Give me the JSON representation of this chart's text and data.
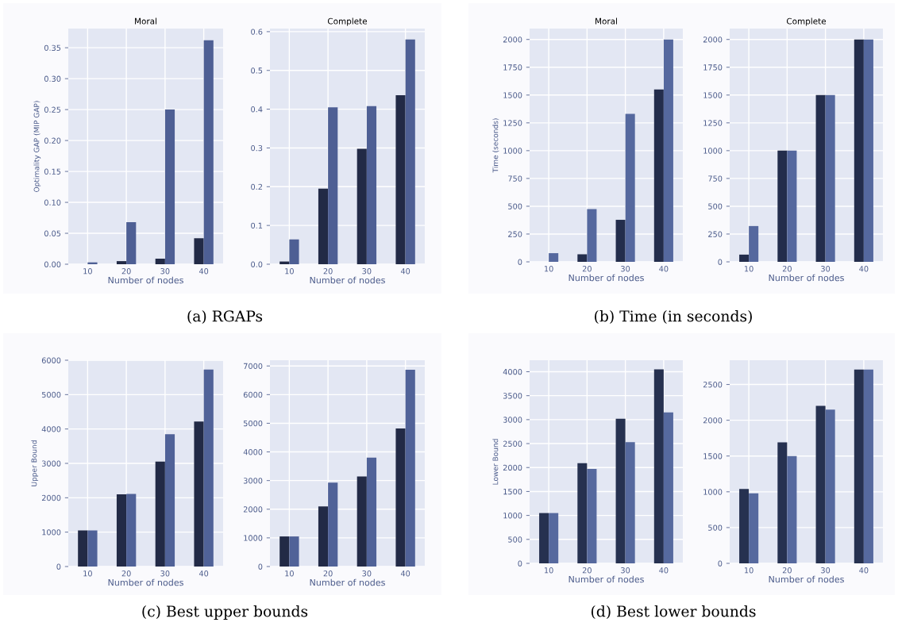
{
  "chart_data": [
    {
      "type": "bar",
      "title": "Moral",
      "ylabel": "Optimality GAP (MIP GAP)",
      "xlabel": "Number of nodes",
      "categories": [
        "10",
        "20",
        "30",
        "40"
      ],
      "grid": true,
      "ylim": [
        0,
        0.381
      ],
      "yticks": [
        {
          "value": 0,
          "label": "0.00"
        },
        {
          "value": 0.05,
          "label": "0.05"
        },
        {
          "value": 0.1,
          "label": "0.10"
        },
        {
          "value": 0.15,
          "label": "0.15"
        },
        {
          "value": 0.2,
          "label": "0.20"
        },
        {
          "value": 0.25,
          "label": "0.25"
        },
        {
          "value": 0.3,
          "label": "0.30"
        },
        {
          "value": 0.35,
          "label": "0.35"
        }
      ],
      "annotations": [
        "(a) RGAPs"
      ],
      "series": [
        {
          "color": "#222a46",
          "values": [
            0,
            0.005,
            0.009,
            0.042
          ]
        },
        {
          "color": "#4e5f94",
          "values": [
            0.003,
            0.068,
            0.25,
            0.362
          ]
        }
      ]
    },
    {
      "type": "bar",
      "title": "Complete",
      "xlabel": "Number of nodes",
      "categories": [
        "10",
        "20",
        "30",
        "40"
      ],
      "grid": true,
      "ylim": [
        0,
        0.608
      ],
      "yticks": [
        {
          "value": 0,
          "label": "0.0"
        },
        0.1,
        0.2,
        0.3,
        0.4,
        0.5,
        0.6
      ],
      "series": [
        {
          "color": "#222a46",
          "values": [
            0.007,
            0.195,
            0.298,
            0.436
          ]
        },
        {
          "color": "#4e5f94",
          "values": [
            0.064,
            0.405,
            0.408,
            0.58
          ]
        }
      ]
    },
    {
      "type": "bar",
      "title": "Moral",
      "ylabel": "Time (seconds)",
      "xlabel": "Number of nodes",
      "categories": [
        "10",
        "20",
        "30",
        "40"
      ],
      "grid": true,
      "ylim": [
        0,
        2098
      ],
      "yticks": [
        0,
        250,
        500,
        750,
        1000,
        1250,
        1500,
        1750,
        2000
      ],
      "annotations": [
        "(b) Time (in seconds)"
      ],
      "series": [
        {
          "color": "#232d4c",
          "values": [
            null,
            68,
            378,
            1550
          ]
        },
        {
          "color": "#55689e",
          "values": [
            78,
            475,
            1330,
            2000
          ]
        }
      ]
    },
    {
      "type": "bar",
      "title": "Complete",
      "xlabel": "Number of nodes",
      "categories": [
        "10",
        "20",
        "30",
        "40"
      ],
      "grid": true,
      "ylim": [
        0,
        2098
      ],
      "yticks": [
        0,
        250,
        500,
        750,
        1000,
        1250,
        1500,
        1750,
        2000
      ],
      "series": [
        {
          "color": "#232d4c",
          "values": [
            65,
            1000,
            1500,
            2000
          ]
        },
        {
          "color": "#55689e",
          "values": [
            322,
            1000,
            1500,
            2000
          ]
        }
      ]
    },
    {
      "type": "bar",
      "ylabel": "Upper Bound",
      "xlabel": "Number of nodes",
      "categories": [
        "10",
        "20",
        "30",
        "40"
      ],
      "grid": true,
      "ylim": [
        0,
        6000
      ],
      "yticks": [
        0,
        1000,
        2000,
        3000,
        4000,
        5000,
        6000
      ],
      "annotations": [
        "(c) Best upper bounds"
      ],
      "series": [
        {
          "color": "#222a46",
          "values": [
            1050,
            2100,
            3050,
            4220
          ]
        },
        {
          "color": "#506298",
          "values": [
            1050,
            2110,
            3850,
            5730
          ]
        }
      ]
    },
    {
      "type": "bar",
      "xlabel": "Number of nodes",
      "categories": [
        "10",
        "20",
        "30",
        "40"
      ],
      "grid": true,
      "ylim": [
        0,
        7200
      ],
      "yticks": [
        0,
        1000,
        2000,
        3000,
        4000,
        5000,
        6000,
        7000
      ],
      "series": [
        {
          "color": "#222a46",
          "values": [
            1050,
            2100,
            3140,
            4820
          ]
        },
        {
          "color": "#506298",
          "values": [
            1050,
            2930,
            3800,
            6870
          ]
        }
      ]
    },
    {
      "type": "bar",
      "ylabel": "Lower Bound",
      "xlabel": "Number of nodes",
      "categories": [
        "10",
        "20",
        "30",
        "40"
      ],
      "grid": true,
      "ylim": [
        0,
        4240
      ],
      "yticks": [
        0,
        500,
        1000,
        1500,
        2000,
        2500,
        3000,
        3500,
        4000
      ],
      "annotations": [
        "(d) Best lower bounds"
      ],
      "series": [
        {
          "color": "#263150",
          "values": [
            1050,
            2090,
            3020,
            4050
          ]
        },
        {
          "color": "#56699e",
          "values": [
            1050,
            1970,
            2530,
            3150
          ]
        }
      ]
    },
    {
      "type": "bar",
      "xlabel": "Number of nodes",
      "categories": [
        "10",
        "20",
        "30",
        "40"
      ],
      "grid": true,
      "ylim": [
        0,
        2839
      ],
      "yticks": [
        0,
        500,
        1000,
        1500,
        2000,
        2500
      ],
      "series": [
        {
          "color": "#263150",
          "values": [
            1040,
            1690,
            2200,
            2710
          ]
        },
        {
          "color": "#56699e",
          "values": [
            980,
            1500,
            2150,
            2710
          ]
        }
      ]
    }
  ]
}
